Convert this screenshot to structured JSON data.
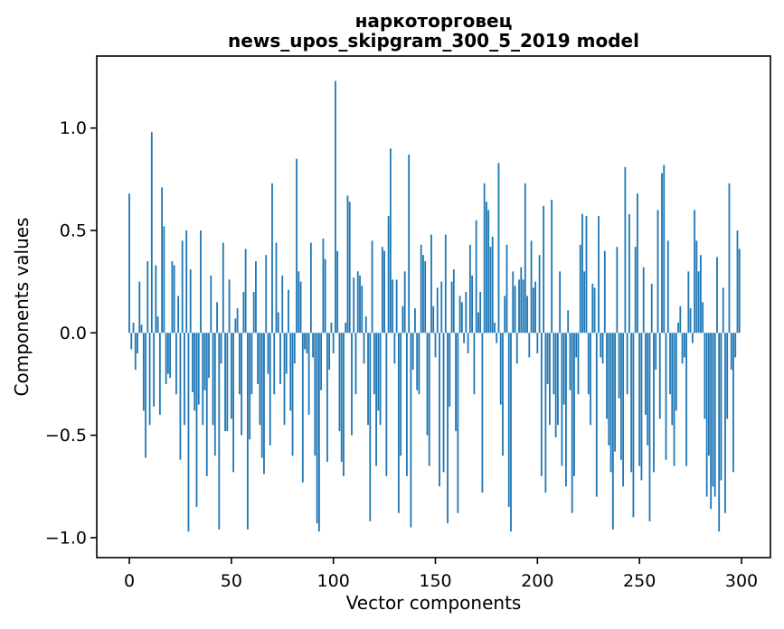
{
  "figure": {
    "title_line1": "наркоторговец",
    "title_line2": "news_upos_skipgram_300_5_2019 model"
  },
  "chart_data": {
    "type": "bar",
    "title": "наркоторговец",
    "subtitle": "news_upos_skipgram_300_5_2019 model",
    "xlabel": "Vector components",
    "ylabel": "Components values",
    "x_ticks": [
      0,
      50,
      100,
      150,
      200,
      250,
      300
    ],
    "y_ticks": [
      1.0,
      0.5,
      0.0,
      -0.5,
      -1.0
    ],
    "y_tick_labels": [
      "1.0",
      "0.5",
      "0.0",
      "−0.5",
      "−1.0"
    ],
    "xlim": [
      -16,
      314
    ],
    "ylim": [
      -1.1,
      1.35
    ],
    "grid": false,
    "legend": null,
    "bar_color": "#1f77b4",
    "n_bars": 300,
    "values": [
      0.68,
      -0.08,
      0.05,
      -0.18,
      -0.1,
      0.25,
      0.04,
      -0.38,
      -0.61,
      0.35,
      -0.45,
      0.98,
      -0.36,
      0.33,
      0.08,
      -0.4,
      0.71,
      0.52,
      -0.25,
      -0.2,
      -0.22,
      0.35,
      0.33,
      -0.3,
      0.18,
      -0.62,
      0.45,
      -0.45,
      0.5,
      -0.97,
      0.31,
      -0.29,
      -0.38,
      -0.85,
      -0.35,
      0.5,
      -0.45,
      -0.28,
      -0.7,
      -0.22,
      0.28,
      -0.45,
      -0.6,
      0.15,
      -0.96,
      -0.15,
      0.44,
      -0.48,
      -0.48,
      0.26,
      -0.42,
      -0.68,
      0.07,
      0.12,
      -0.3,
      -0.5,
      0.2,
      0.41,
      -0.96,
      -0.52,
      -0.3,
      0.2,
      0.35,
      -0.25,
      -0.45,
      -0.61,
      -0.69,
      0.38,
      -0.2,
      -0.55,
      0.73,
      -0.3,
      0.44,
      0.1,
      -0.25,
      0.28,
      -0.45,
      -0.2,
      0.21,
      -0.38,
      -0.6,
      -0.15,
      0.85,
      0.3,
      0.25,
      -0.73,
      -0.08,
      -0.1,
      -0.4,
      0.44,
      -0.12,
      -0.6,
      -0.93,
      -0.97,
      -0.28,
      0.46,
      0.36,
      -0.63,
      -0.18,
      0.05,
      -0.1,
      1.23,
      0.4,
      -0.48,
      -0.63,
      -0.7,
      0.05,
      0.67,
      0.64,
      -0.5,
      0.27,
      -0.3,
      0.3,
      0.28,
      0.23,
      -0.15,
      0.08,
      -0.45,
      -0.92,
      0.45,
      -0.3,
      -0.65,
      -0.38,
      -0.45,
      0.42,
      0.4,
      -0.7,
      0.57,
      0.9,
      0.26,
      -0.15,
      0.26,
      -0.88,
      -0.6,
      0.13,
      0.3,
      -0.7,
      0.87,
      -0.95,
      -0.18,
      0.12,
      -0.28,
      -0.3,
      0.43,
      0.38,
      0.35,
      -0.5,
      -0.65,
      0.48,
      0.13,
      -0.12,
      0.22,
      -0.75,
      0.25,
      -0.68,
      0.48,
      -0.93,
      -0.36,
      0.25,
      0.31,
      -0.48,
      -0.88,
      0.18,
      0.15,
      -0.05,
      0.2,
      -0.1,
      0.43,
      0.28,
      -0.3,
      0.55,
      0.1,
      0.2,
      -0.78,
      0.73,
      0.64,
      0.6,
      0.42,
      0.47,
      0.05,
      -0.05,
      0.83,
      -0.35,
      -0.6,
      0.18,
      0.43,
      -0.85,
      -0.97,
      0.3,
      0.23,
      -0.15,
      0.26,
      0.32,
      0.26,
      0.73,
      0.18,
      -0.12,
      0.45,
      0.22,
      0.25,
      -0.1,
      0.38,
      -0.7,
      0.62,
      -0.78,
      -0.25,
      -0.45,
      0.65,
      -0.3,
      -0.51,
      -0.45,
      0.3,
      -0.65,
      -0.35,
      -0.75,
      0.11,
      -0.28,
      -0.88,
      -0.7,
      -0.12,
      -0.3,
      0.43,
      0.58,
      0.3,
      0.57,
      -0.3,
      -0.45,
      0.24,
      0.22,
      -0.8,
      0.57,
      -0.12,
      -0.15,
      0.4,
      -0.42,
      -0.55,
      -0.68,
      -0.96,
      -0.58,
      0.42,
      -0.32,
      -0.62,
      -0.75,
      0.81,
      -0.3,
      0.58,
      -0.68,
      -0.9,
      0.42,
      0.68,
      -0.65,
      -0.72,
      0.32,
      -0.4,
      -0.55,
      -0.92,
      0.24,
      -0.68,
      -0.18,
      0.6,
      -0.42,
      0.78,
      0.82,
      -0.62,
      0.45,
      -0.3,
      -0.45,
      -0.65,
      -0.38,
      0.05,
      0.13,
      -0.15,
      -0.12,
      -0.65,
      0.3,
      0.12,
      -0.05,
      0.6,
      0.45,
      0.3,
      0.38,
      0.15,
      -0.42,
      -0.8,
      -0.6,
      -0.86,
      -0.75,
      -0.8,
      0.37,
      -0.97,
      -0.72,
      0.22,
      -0.88,
      -0.42,
      0.73,
      -0.18,
      -0.68,
      -0.12,
      0.5,
      0.41
    ]
  }
}
